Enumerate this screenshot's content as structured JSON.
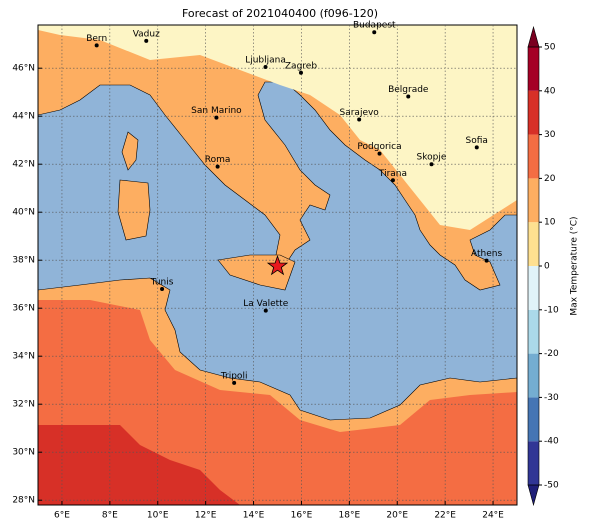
{
  "map": {
    "title": "Forecast of 2021040400 (f096-120)",
    "xlim": [
      5,
      25
    ],
    "ylim": [
      27.8,
      47.8
    ],
    "xticks": [
      {
        "value": 6,
        "label": "6°E"
      },
      {
        "value": 8,
        "label": "8°E"
      },
      {
        "value": 10,
        "label": "10°E"
      },
      {
        "value": 12,
        "label": "12°E"
      },
      {
        "value": 14,
        "label": "14°E"
      },
      {
        "value": 16,
        "label": "16°E"
      },
      {
        "value": 18,
        "label": "18°E"
      },
      {
        "value": 20,
        "label": "20°E"
      },
      {
        "value": 22,
        "label": "22°E"
      },
      {
        "value": 24,
        "label": "24°E"
      }
    ],
    "yticks": [
      {
        "value": 28,
        "label": "28°N"
      },
      {
        "value": 30,
        "label": "30°N"
      },
      {
        "value": 32,
        "label": "32°N"
      },
      {
        "value": 34,
        "label": "34°N"
      },
      {
        "value": 36,
        "label": "36°N"
      },
      {
        "value": 38,
        "label": "38°N"
      },
      {
        "value": 40,
        "label": "40°N"
      },
      {
        "value": 42,
        "label": "42°N"
      },
      {
        "value": 44,
        "label": "44°N"
      },
      {
        "value": 46,
        "label": "46°N"
      }
    ],
    "grid": true,
    "cities": [
      {
        "name": "Bern",
        "lon": 7.45,
        "lat": 46.95
      },
      {
        "name": "Vaduz",
        "lon": 9.52,
        "lat": 47.14
      },
      {
        "name": "Budapest",
        "lon": 19.04,
        "lat": 47.5
      },
      {
        "name": "Ljubljana",
        "lon": 14.5,
        "lat": 46.05
      },
      {
        "name": "Zagreb",
        "lon": 15.98,
        "lat": 45.81
      },
      {
        "name": "San Marino",
        "lon": 12.45,
        "lat": 43.94
      },
      {
        "name": "Belgrade",
        "lon": 20.46,
        "lat": 44.82
      },
      {
        "name": "Sarajevo",
        "lon": 18.41,
        "lat": 43.86
      },
      {
        "name": "Roma",
        "lon": 12.5,
        "lat": 41.9
      },
      {
        "name": "Podgorica",
        "lon": 19.26,
        "lat": 42.44
      },
      {
        "name": "Skopje",
        "lon": 21.43,
        "lat": 42.0
      },
      {
        "name": "Sofia",
        "lon": 23.32,
        "lat": 42.7
      },
      {
        "name": "Tirana",
        "lon": 19.82,
        "lat": 41.33
      },
      {
        "name": "Athens",
        "lon": 23.73,
        "lat": 37.98
      },
      {
        "name": "Tunis",
        "lon": 10.18,
        "lat": 36.8
      },
      {
        "name": "La Valette",
        "lon": 14.51,
        "lat": 35.9
      },
      {
        "name": "Tripoli",
        "lon": 13.19,
        "lat": 32.89
      }
    ],
    "star": {
      "lon": 15,
      "lat": 37.75,
      "color": "#e8191e"
    }
  },
  "colorbar": {
    "label": "Max Temperature (°C)",
    "ticks": [
      -50,
      -40,
      -30,
      -20,
      -10,
      0,
      10,
      20,
      30,
      40,
      50
    ],
    "colors": [
      "#313695",
      "#4575b4",
      "#74add1",
      "#abd9e9",
      "#e0f3f8",
      "#fee090",
      "#fdae61",
      "#f46d43",
      "#d73027",
      "#a50026"
    ],
    "under_color": "#1f1f78",
    "over_color": "#7a0020"
  }
}
